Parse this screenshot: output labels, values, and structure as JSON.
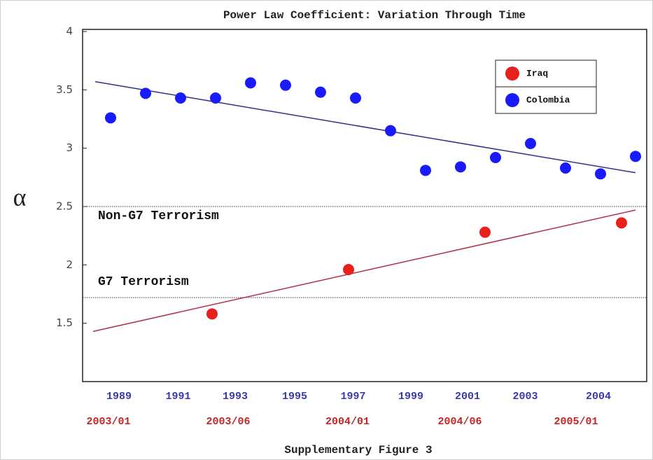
{
  "chart_data": {
    "type": "scatter",
    "title": "Power Law Coefficient: Variation Through Time",
    "y_label": "α",
    "footer": "Supplementary Figure 3",
    "xlim": [
      0,
      16
    ],
    "ylim": [
      1,
      4
    ],
    "yticks": [
      1.5,
      2,
      2.5,
      3,
      3.5,
      4
    ],
    "xticks": [
      {
        "value": 1.04,
        "label": "1989"
      },
      {
        "value": 2.73,
        "label": "1991"
      },
      {
        "value": 4.36,
        "label": "1993"
      },
      {
        "value": 6.06,
        "label": "1995"
      },
      {
        "value": 7.73,
        "label": "1997"
      },
      {
        "value": 9.38,
        "label": "1999"
      },
      {
        "value": 11.0,
        "label": "2001"
      },
      {
        "value": 12.65,
        "label": "2003"
      },
      {
        "value": 14.74,
        "label": "2004"
      }
    ],
    "xticks2": [
      {
        "value": 0.74,
        "label": "2003/01"
      },
      {
        "value": 4.16,
        "label": "2003/06"
      },
      {
        "value": 7.57,
        "label": "2004/01"
      },
      {
        "value": 10.78,
        "label": "2004/06"
      },
      {
        "value": 14.1,
        "label": "2005/01"
      }
    ],
    "xticks_color": "#3a3aa8",
    "xticks2_color": "#c02828",
    "legend": "upper right",
    "series": [
      {
        "name": "Iraq",
        "color": "#e8201c",
        "x": [
          3.7,
          7.6,
          11.5,
          15.4
        ],
        "values": [
          1.58,
          1.96,
          2.28,
          2.36
        ]
      },
      {
        "name": "Colombia",
        "color": "#1a1aff",
        "x": [
          0.8,
          1.8,
          2.8,
          3.8,
          4.8,
          5.8,
          6.8,
          7.8,
          8.8,
          9.8,
          10.8,
          11.8,
          12.8,
          13.8,
          14.8,
          15.8
        ],
        "values": [
          3.26,
          3.47,
          3.43,
          3.43,
          3.56,
          3.54,
          3.48,
          3.43,
          3.15,
          2.81,
          2.84,
          2.92,
          3.04,
          2.83,
          2.78,
          2.93
        ]
      }
    ],
    "trend_lines": [
      {
        "color": "#b03048",
        "x": [
          0.3,
          15.8
        ],
        "values": [
          1.43,
          2.47
        ]
      },
      {
        "color": "#303088",
        "x": [
          0.36,
          15.8
        ],
        "values": [
          3.57,
          2.79
        ]
      }
    ],
    "reference_lines": [
      {
        "value": 2.5,
        "label": "Non-G7 Terrorism"
      },
      {
        "value": 1.72,
        "label": "G7 Terrorism"
      }
    ]
  }
}
